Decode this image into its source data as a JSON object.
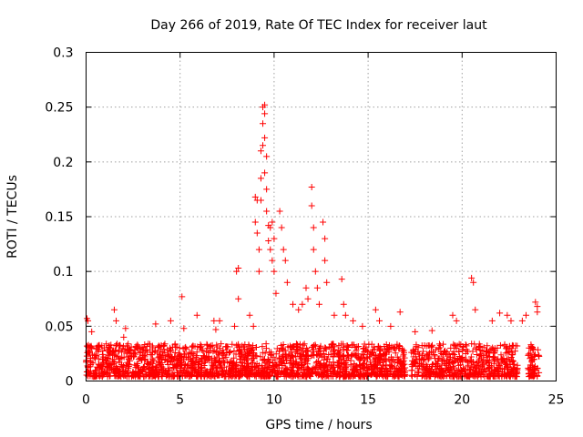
{
  "chart_data": {
    "type": "scatter",
    "title": "Day 266 of 2019, Rate Of TEC Index for receiver laut",
    "xlabel": "GPS time / hours",
    "ylabel": "ROTI / TECUs",
    "xlim": [
      0,
      25
    ],
    "ylim": [
      0,
      0.3
    ],
    "xticks": [
      0,
      5,
      10,
      15,
      20,
      25
    ],
    "xtick_labels": [
      "0",
      "5",
      "10",
      "15",
      "20",
      "25"
    ],
    "yticks": [
      0,
      0.05,
      0.1,
      0.15,
      0.2,
      0.25,
      0.3
    ],
    "ytick_labels": [
      "0",
      "0.05",
      "0.1",
      "0.15",
      "0.2",
      "0.25",
      "0.3"
    ],
    "grid": true,
    "marker": "+",
    "series": [
      {
        "name": "ROTI",
        "color": "#ff0000",
        "peaks": [
          {
            "x": 0.05,
            "y": 0.057
          },
          {
            "x": 0.1,
            "y": 0.055
          },
          {
            "x": 0.3,
            "y": 0.045
          },
          {
            "x": 1.5,
            "y": 0.065
          },
          {
            "x": 1.6,
            "y": 0.055
          },
          {
            "x": 2.0,
            "y": 0.04
          },
          {
            "x": 2.1,
            "y": 0.048
          },
          {
            "x": 3.7,
            "y": 0.052
          },
          {
            "x": 4.5,
            "y": 0.055
          },
          {
            "x": 5.1,
            "y": 0.077
          },
          {
            "x": 5.2,
            "y": 0.048
          },
          {
            "x": 5.9,
            "y": 0.06
          },
          {
            "x": 6.8,
            "y": 0.055
          },
          {
            "x": 6.9,
            "y": 0.047
          },
          {
            "x": 7.1,
            "y": 0.055
          },
          {
            "x": 7.9,
            "y": 0.05
          },
          {
            "x": 8.1,
            "y": 0.075
          },
          {
            "x": 8.0,
            "y": 0.1
          },
          {
            "x": 8.1,
            "y": 0.103
          },
          {
            "x": 8.7,
            "y": 0.06
          },
          {
            "x": 8.9,
            "y": 0.05
          },
          {
            "x": 9.0,
            "y": 0.168
          },
          {
            "x": 9.1,
            "y": 0.165
          },
          {
            "x": 9.0,
            "y": 0.145
          },
          {
            "x": 9.1,
            "y": 0.135
          },
          {
            "x": 9.2,
            "y": 0.12
          },
          {
            "x": 9.2,
            "y": 0.1
          },
          {
            "x": 9.3,
            "y": 0.21
          },
          {
            "x": 9.3,
            "y": 0.185
          },
          {
            "x": 9.3,
            "y": 0.165
          },
          {
            "x": 9.4,
            "y": 0.25
          },
          {
            "x": 9.4,
            "y": 0.235
          },
          {
            "x": 9.4,
            "y": 0.215
          },
          {
            "x": 9.5,
            "y": 0.252
          },
          {
            "x": 9.5,
            "y": 0.244
          },
          {
            "x": 9.5,
            "y": 0.222
          },
          {
            "x": 9.5,
            "y": 0.19
          },
          {
            "x": 9.6,
            "y": 0.205
          },
          {
            "x": 9.6,
            "y": 0.175
          },
          {
            "x": 9.6,
            "y": 0.155
          },
          {
            "x": 9.7,
            "y": 0.142
          },
          {
            "x": 9.7,
            "y": 0.128
          },
          {
            "x": 9.8,
            "y": 0.14
          },
          {
            "x": 9.8,
            "y": 0.12
          },
          {
            "x": 9.9,
            "y": 0.145
          },
          {
            "x": 9.9,
            "y": 0.11
          },
          {
            "x": 10.0,
            "y": 0.1
          },
          {
            "x": 10.0,
            "y": 0.13
          },
          {
            "x": 10.1,
            "y": 0.08
          },
          {
            "x": 10.3,
            "y": 0.155
          },
          {
            "x": 10.4,
            "y": 0.14
          },
          {
            "x": 10.5,
            "y": 0.12
          },
          {
            "x": 10.6,
            "y": 0.11
          },
          {
            "x": 10.7,
            "y": 0.09
          },
          {
            "x": 11.0,
            "y": 0.07
          },
          {
            "x": 11.3,
            "y": 0.065
          },
          {
            "x": 11.5,
            "y": 0.07
          },
          {
            "x": 11.7,
            "y": 0.085
          },
          {
            "x": 11.8,
            "y": 0.075
          },
          {
            "x": 12.0,
            "y": 0.177
          },
          {
            "x": 12.0,
            "y": 0.16
          },
          {
            "x": 12.1,
            "y": 0.14
          },
          {
            "x": 12.1,
            "y": 0.12
          },
          {
            "x": 12.2,
            "y": 0.1
          },
          {
            "x": 12.3,
            "y": 0.085
          },
          {
            "x": 12.4,
            "y": 0.07
          },
          {
            "x": 12.6,
            "y": 0.145
          },
          {
            "x": 12.7,
            "y": 0.13
          },
          {
            "x": 12.7,
            "y": 0.11
          },
          {
            "x": 12.8,
            "y": 0.09
          },
          {
            "x": 13.2,
            "y": 0.06
          },
          {
            "x": 13.6,
            "y": 0.093
          },
          {
            "x": 13.7,
            "y": 0.07
          },
          {
            "x": 13.8,
            "y": 0.06
          },
          {
            "x": 14.2,
            "y": 0.055
          },
          {
            "x": 14.7,
            "y": 0.05
          },
          {
            "x": 15.4,
            "y": 0.065
          },
          {
            "x": 15.6,
            "y": 0.055
          },
          {
            "x": 16.2,
            "y": 0.05
          },
          {
            "x": 16.7,
            "y": 0.063
          },
          {
            "x": 17.5,
            "y": 0.045
          },
          {
            "x": 18.4,
            "y": 0.046
          },
          {
            "x": 19.5,
            "y": 0.06
          },
          {
            "x": 19.7,
            "y": 0.055
          },
          {
            "x": 20.5,
            "y": 0.094
          },
          {
            "x": 20.6,
            "y": 0.09
          },
          {
            "x": 20.7,
            "y": 0.065
          },
          {
            "x": 21.6,
            "y": 0.055
          },
          {
            "x": 22.0,
            "y": 0.062
          },
          {
            "x": 22.4,
            "y": 0.06
          },
          {
            "x": 22.6,
            "y": 0.055
          },
          {
            "x": 23.2,
            "y": 0.055
          },
          {
            "x": 23.4,
            "y": 0.06
          },
          {
            "x": 23.9,
            "y": 0.072
          },
          {
            "x": 24.0,
            "y": 0.068
          },
          {
            "x": 24.0,
            "y": 0.063
          }
        ],
        "gaps": [
          [
            17.0,
            17.3
          ],
          [
            23.1,
            23.5
          ],
          [
            22.95,
            23.1
          ]
        ],
        "band_max": 0.03
      }
    ]
  }
}
